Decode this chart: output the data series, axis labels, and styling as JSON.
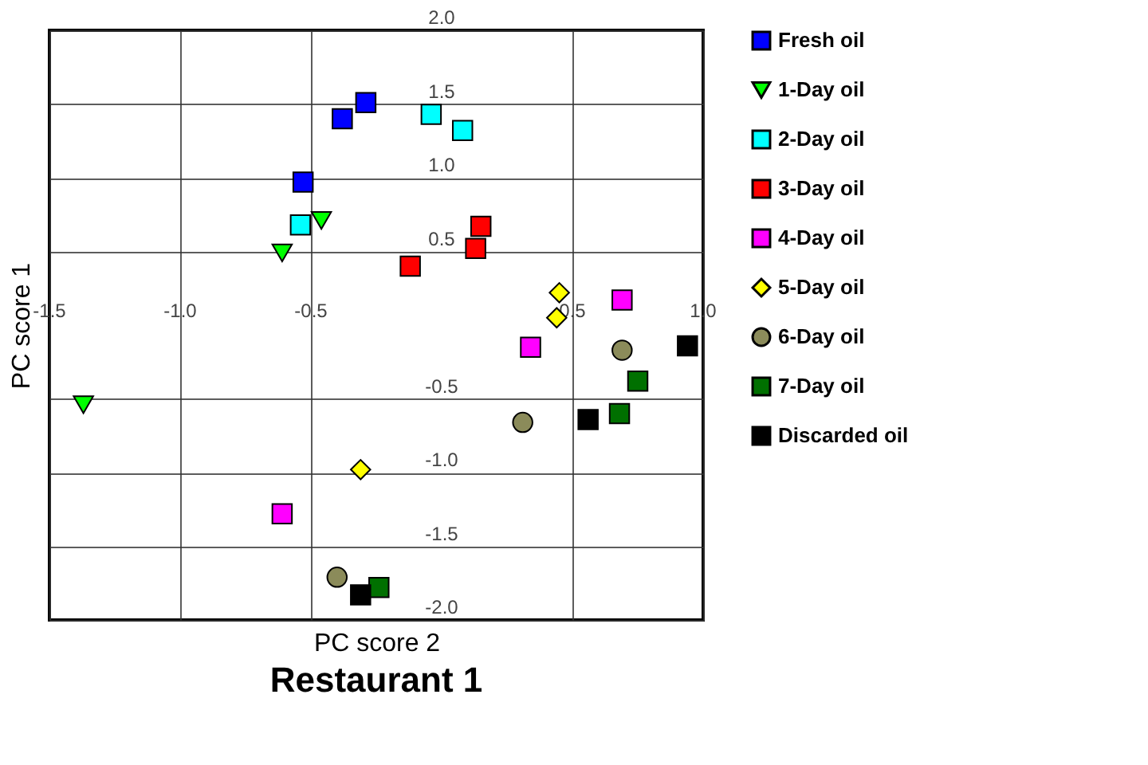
{
  "chart_data": {
    "type": "scatter",
    "title": "Restaurant 1",
    "xlabel": "PC score 2",
    "ylabel": "PC score 1",
    "xlim": [
      -1.5,
      1.0
    ],
    "ylim": [
      -2.0,
      2.0
    ],
    "xticks": [
      {
        "value": -1.5,
        "label": "-1.5"
      },
      {
        "value": -1.0,
        "label": "-1.0"
      },
      {
        "value": -0.5,
        "label": "-0.5"
      },
      {
        "value": 0.5,
        "label": "0.5"
      },
      {
        "value": 1.0,
        "label": "1.0"
      }
    ],
    "yticks": [
      {
        "value": -2.0,
        "label": "-2.0"
      },
      {
        "value": -1.5,
        "label": "-1.5"
      },
      {
        "value": -1.0,
        "label": "-1.0"
      },
      {
        "value": -0.5,
        "label": "-0.5"
      },
      {
        "value": 0.5,
        "label": "0.5"
      },
      {
        "value": 1.0,
        "label": "1.0"
      },
      {
        "value": 1.5,
        "label": "1.5"
      },
      {
        "value": 2.0,
        "label": "2.0"
      }
    ],
    "grid": true,
    "legend": "right",
    "series": [
      {
        "name": "Fresh oil",
        "color": "#0000ff",
        "marker": "square",
        "x": [
          -0.38,
          -0.29,
          -0.53
        ],
        "values": [
          1.4,
          1.51,
          0.97
        ]
      },
      {
        "name": "1-Day oil",
        "color": "#00ff00",
        "marker": "triangle-down",
        "x": [
          -0.46,
          -0.61,
          -1.37
        ],
        "values": [
          0.71,
          0.49,
          -0.54
        ]
      },
      {
        "name": "2-Day oil",
        "color": "#00ffff",
        "marker": "square",
        "x": [
          -0.04,
          0.08,
          -0.54
        ],
        "values": [
          1.43,
          1.32,
          0.68
        ]
      },
      {
        "name": "3-Day oil",
        "color": "#ff0000",
        "marker": "square",
        "x": [
          -0.12,
          0.13,
          0.15
        ],
        "values": [
          0.4,
          0.52,
          0.67
        ]
      },
      {
        "name": "4-Day oil",
        "color": "#ff00ff",
        "marker": "square",
        "x": [
          0.69,
          0.34,
          -0.61
        ],
        "values": [
          0.17,
          -0.15,
          -1.28
        ]
      },
      {
        "name": "5-Day oil",
        "color": "#ffff00",
        "marker": "diamond",
        "x": [
          0.45,
          0.44,
          -0.31
        ],
        "values": [
          0.22,
          0.05,
          -0.98
        ]
      },
      {
        "name": "6-Day oil",
        "color": "#8b8b5a",
        "marker": "circle",
        "x": [
          0.69,
          0.31,
          -0.4
        ],
        "values": [
          -0.17,
          -0.66,
          -1.71
        ]
      },
      {
        "name": "7-Day oil",
        "color": "#007000",
        "marker": "square",
        "x": [
          0.75,
          0.68,
          -0.24
        ],
        "values": [
          -0.38,
          -0.6,
          -1.78
        ]
      },
      {
        "name": "Discarded oil",
        "color": "#000000",
        "marker": "square",
        "x": [
          0.94,
          0.56,
          -0.31
        ],
        "values": [
          -0.14,
          -0.64,
          -1.83
        ]
      }
    ]
  }
}
